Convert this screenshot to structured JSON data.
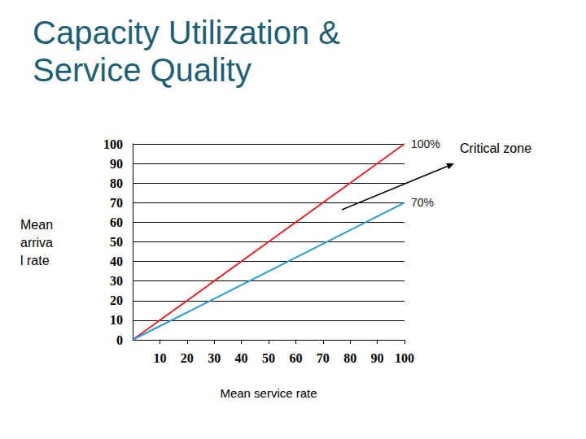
{
  "chart_data": {
    "type": "line",
    "title": "Capacity Utilization & Service Quality",
    "x_label": "Mean service rate",
    "y_label": "Mean arrival rate",
    "x": [
      0,
      100
    ],
    "series": [
      {
        "name": "100%",
        "color": "#e3262b",
        "values": [
          0,
          100
        ]
      },
      {
        "name": "70%",
        "color": "#2f9bd1",
        "values": [
          0,
          70
        ]
      }
    ],
    "xlim": [
      0,
      100
    ],
    "xticks": [
      10,
      20,
      30,
      40,
      50,
      60,
      70,
      80,
      90,
      100
    ],
    "ylim": [
      0,
      100
    ],
    "yticks": [
      0,
      10,
      20,
      30,
      40,
      50,
      60,
      70,
      80,
      90,
      100
    ],
    "grid": true,
    "annotations": [
      {
        "text": "Critical zone"
      }
    ]
  }
}
